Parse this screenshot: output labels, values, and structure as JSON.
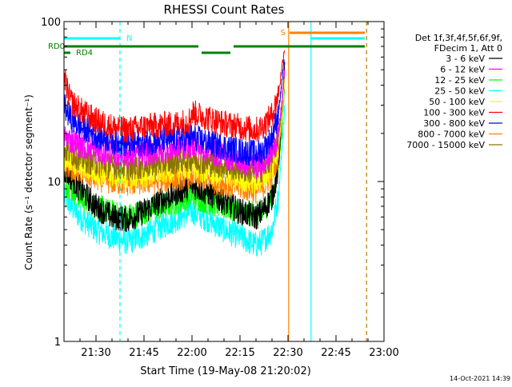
{
  "chart_data": {
    "type": "line",
    "title": "RHESSI Count Rates",
    "xlabel": "Start Time (19-May-08 21:20:02)",
    "ylabel": "Count Rate (s⁻¹ detector segment⁻¹)",
    "yscale": "log",
    "ylim": [
      1,
      100
    ],
    "xlim_minutes_from_start": [
      0,
      100
    ],
    "x_tick_labels": [
      "21:30",
      "21:45",
      "22:00",
      "22:15",
      "22:30",
      "22:45",
      "23:00"
    ],
    "x_tick_minutes": [
      10,
      25,
      40,
      55,
      70,
      85,
      100
    ],
    "y_tick_labels": [
      "1",
      "10",
      "100"
    ],
    "grid": false,
    "legend_header": [
      "Det 1f,3f,4f,5f,6f,9f,",
      "FDecim 1, Att 0"
    ],
    "legend_position": "right",
    "timestamp": "14-Oct-2021 14:39",
    "series": [
      {
        "name": "3 - 6 keV",
        "color": "#000000",
        "x": [
          0,
          5,
          10,
          15,
          20,
          25,
          30,
          35,
          40,
          45,
          50,
          55,
          60,
          62,
          65,
          67,
          68,
          69
        ],
        "values": [
          12,
          9,
          7,
          6,
          5.8,
          6.5,
          7.5,
          8.5,
          9.5,
          8.5,
          7.5,
          6.5,
          6,
          6.5,
          8,
          12,
          25,
          55
        ]
      },
      {
        "name": "6 - 12 keV",
        "color": "#ff00ff",
        "x": [
          0,
          5,
          10,
          15,
          20,
          25,
          30,
          35,
          40,
          45,
          50,
          55,
          60,
          62,
          65,
          67,
          68,
          69
        ],
        "values": [
          19,
          17,
          15.5,
          15,
          14.5,
          15,
          15.5,
          16,
          17,
          15.5,
          14.5,
          13.5,
          12.5,
          13,
          15,
          20,
          30,
          50
        ]
      },
      {
        "name": "12 - 25 keV",
        "color": "#00ff00",
        "x": [
          0,
          5,
          10,
          15,
          20,
          25,
          30,
          35,
          40,
          45,
          50,
          55,
          60,
          62,
          65,
          67,
          68,
          69
        ],
        "values": [
          10,
          8,
          7,
          6.3,
          6,
          6.5,
          7,
          7.5,
          8.2,
          7.5,
          7,
          6.5,
          6.2,
          6.5,
          8,
          12,
          20,
          40
        ]
      },
      {
        "name": "25 - 50 keV",
        "color": "#00ffff",
        "x": [
          0,
          5,
          10,
          15,
          20,
          25,
          30,
          35,
          40,
          45,
          50,
          55,
          60,
          62,
          65,
          67,
          68,
          69
        ],
        "values": [
          8,
          6,
          5,
          4.5,
          4.2,
          4.6,
          5.2,
          5.8,
          6.5,
          5.8,
          5,
          4.5,
          4,
          4.2,
          5,
          8,
          15,
          30
        ]
      },
      {
        "name": "50 - 100 keV",
        "color": "#ffff00",
        "x": [
          0,
          5,
          10,
          15,
          20,
          25,
          30,
          35,
          40,
          45,
          50,
          55,
          60,
          62,
          65,
          67,
          68,
          69
        ],
        "values": [
          14,
          12.5,
          11.5,
          11,
          10.8,
          11,
          11.5,
          12,
          12.5,
          11.5,
          11,
          10.5,
          10,
          10.5,
          12,
          17,
          25,
          45
        ]
      },
      {
        "name": "100 - 300 keV",
        "color": "#ff0000",
        "x": [
          0,
          2,
          5,
          10,
          15,
          20,
          25,
          30,
          35,
          39,
          40,
          45,
          50,
          55,
          60,
          62,
          65,
          67,
          68,
          69
        ],
        "values": [
          45,
          32,
          28,
          24,
          22,
          21,
          22,
          22.5,
          23,
          24,
          27,
          25,
          23,
          22,
          21,
          22,
          26,
          35,
          50,
          70
        ]
      },
      {
        "name": "300 - 800 keV",
        "color": "#0000ff",
        "x": [
          0,
          2,
          5,
          10,
          15,
          20,
          25,
          30,
          35,
          40,
          45,
          50,
          55,
          60,
          62,
          65,
          67,
          68,
          69
        ],
        "values": [
          30,
          25,
          22,
          19.5,
          18,
          17,
          17.5,
          18,
          18.5,
          19,
          17.5,
          16.5,
          15.5,
          15,
          15.5,
          19,
          27,
          40,
          60
        ]
      },
      {
        "name": "800 - 7000 keV",
        "color": "#ff8000",
        "x": [
          0,
          5,
          10,
          15,
          20,
          25,
          30,
          35,
          40,
          45,
          50,
          55,
          60,
          62,
          65,
          67,
          68,
          69
        ],
        "values": [
          13,
          11.5,
          10.5,
          10,
          9.8,
          10,
          10.2,
          10.5,
          11,
          10.3,
          9.8,
          9.3,
          8.8,
          9.2,
          11,
          15,
          24,
          45
        ]
      },
      {
        "name": "7000 - 15000 keV",
        "color": "#8b7500",
        "x": [
          0,
          5,
          10,
          15,
          20,
          25,
          30,
          35,
          40,
          45,
          50,
          55,
          60,
          62,
          65,
          67,
          68,
          69
        ],
        "values": [
          16,
          14,
          13,
          12.5,
          12.3,
          12.5,
          13,
          13.5,
          14,
          13,
          12.5,
          12,
          11.5,
          12,
          14,
          19,
          28,
          50
        ]
      }
    ],
    "annotations": {
      "flag_labels": [
        "RD0",
        "RD4",
        "N",
        "S"
      ],
      "rd0_segments": [
        [
          0,
          42
        ],
        [
          43,
          52
        ],
        [
          53,
          94
        ]
      ],
      "rd4_segments": [
        [
          0,
          1.5
        ]
      ],
      "n_segments": [
        [
          0,
          17.5
        ],
        [
          77,
          94
        ]
      ],
      "s_segments": [
        [
          70,
          94
        ]
      ],
      "vertical_lines": [
        {
          "x": 17.5,
          "color": "#00ffff",
          "dashed": true
        },
        {
          "x": 70.2,
          "color": "#ff8000",
          "dashed": false
        },
        {
          "x": 77.2,
          "color": "#00ffff",
          "dashed": false
        },
        {
          "x": 94.5,
          "color": "#00ffff",
          "dashed": true
        },
        {
          "x": 94.6,
          "color": "#ff8000",
          "dashed": true
        }
      ],
      "rd0_color": "#008000",
      "n_color": "#00ffff",
      "s_color": "#ff8000"
    }
  }
}
